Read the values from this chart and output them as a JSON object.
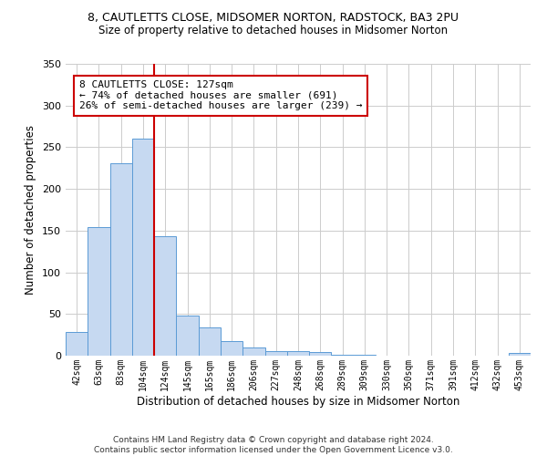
{
  "title1": "8, CAUTLETTS CLOSE, MIDSOMER NORTON, RADSTOCK, BA3 2PU",
  "title2": "Size of property relative to detached houses in Midsomer Norton",
  "xlabel": "Distribution of detached houses by size in Midsomer Norton",
  "ylabel": "Number of detached properties",
  "bar_labels": [
    "42sqm",
    "63sqm",
    "83sqm",
    "104sqm",
    "124sqm",
    "145sqm",
    "165sqm",
    "186sqm",
    "206sqm",
    "227sqm",
    "248sqm",
    "268sqm",
    "289sqm",
    "309sqm",
    "330sqm",
    "350sqm",
    "371sqm",
    "391sqm",
    "412sqm",
    "432sqm",
    "453sqm"
  ],
  "bar_values": [
    28,
    154,
    231,
    260,
    143,
    48,
    34,
    17,
    10,
    5,
    5,
    4,
    1,
    1,
    0,
    0,
    0,
    0,
    0,
    0,
    3
  ],
  "bar_color": "#c6d9f1",
  "bar_edge_color": "#5b9bd5",
  "ylim": [
    0,
    350
  ],
  "yticks": [
    0,
    50,
    100,
    150,
    200,
    250,
    300,
    350
  ],
  "vline_index": 4,
  "vline_color": "#cc0000",
  "annotation_box_text": "8 CAUTLETTS CLOSE: 127sqm\n← 74% of detached houses are smaller (691)\n26% of semi-detached houses are larger (239) →",
  "footer": "Contains HM Land Registry data © Crown copyright and database right 2024.\nContains public sector information licensed under the Open Government Licence v3.0.",
  "background_color": "#ffffff",
  "grid_color": "#cccccc"
}
